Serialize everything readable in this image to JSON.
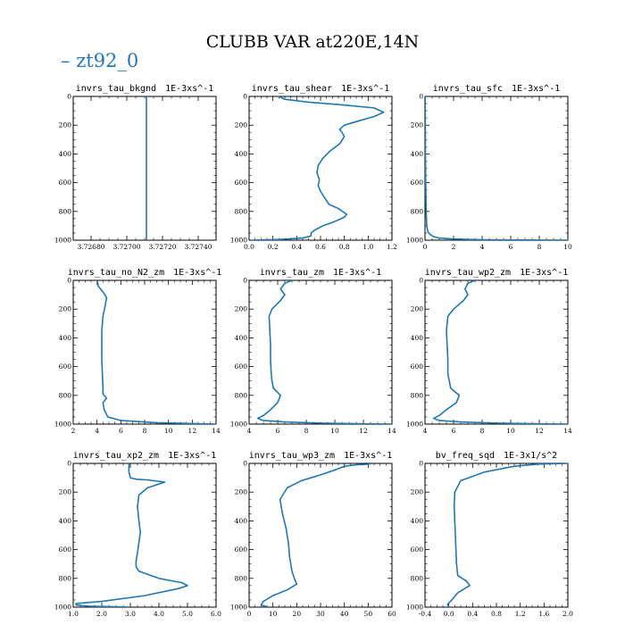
{
  "title": "CLUBB VAR at220E,14N",
  "legend": {
    "label": "zt92_0",
    "marker": "–",
    "color": "#1f77b4"
  },
  "chart_data": [
    {
      "type": "line",
      "title": "invrs_tau_bkgnd",
      "units": "1E-3xs^-1",
      "xlim": [
        3.7267,
        3.7275
      ],
      "xticks": [
        3.7268,
        3.727,
        3.7272,
        3.7274
      ],
      "xtick_labels": [
        "3.72680",
        "3.72700",
        "3.72720",
        "3.72740"
      ],
      "ylim": [
        1000,
        0
      ],
      "yticks": [
        0,
        200,
        400,
        600,
        800,
        1000
      ],
      "series": [
        {
          "x": [
            3.72711,
            3.72711
          ],
          "y": [
            0,
            1000
          ]
        }
      ]
    },
    {
      "type": "line",
      "title": "invrs_tau_shear",
      "units": "1E-3xs^-1",
      "xlim": [
        0.0,
        1.2
      ],
      "xticks": [
        0.0,
        0.2,
        0.4,
        0.6,
        0.8,
        1.0,
        1.2
      ],
      "xtick_labels": [
        "0.0",
        "0.2",
        "0.4",
        "0.6",
        "0.8",
        "1.0",
        "1.2"
      ],
      "ylim": [
        1000,
        0
      ],
      "yticks": [
        0,
        200,
        400,
        600,
        800,
        1000
      ],
      "series": [
        {
          "x": [
            0.25,
            0.3,
            0.5,
            0.8,
            1.05,
            1.13,
            1.05,
            0.9,
            0.8,
            0.76,
            0.78,
            0.8,
            0.76,
            0.68,
            0.62,
            0.58,
            0.57,
            0.59,
            0.58,
            0.6,
            0.63,
            0.67,
            0.75,
            0.82,
            0.8,
            0.72,
            0.62,
            0.55,
            0.52,
            0.52,
            0.45,
            0.25,
            0.02
          ],
          "y": [
            0,
            20,
            40,
            60,
            80,
            110,
            140,
            175,
            200,
            230,
            250,
            280,
            330,
            380,
            430,
            480,
            530,
            580,
            620,
            660,
            700,
            750,
            780,
            820,
            840,
            870,
            900,
            930,
            950,
            970,
            985,
            995,
            1000
          ]
        }
      ]
    },
    {
      "type": "line",
      "title": "invrs_tau_sfc",
      "units": "1E-3xs^-1",
      "xlim": [
        0,
        10
      ],
      "xticks": [
        0,
        2,
        4,
        6,
        8,
        10
      ],
      "xtick_labels": [
        "0",
        "2",
        "4",
        "6",
        "8",
        "10"
      ],
      "ylim": [
        1000,
        0
      ],
      "yticks": [
        0,
        200,
        400,
        600,
        800,
        1000
      ],
      "series": [
        {
          "x": [
            0.01,
            0.02,
            0.03,
            0.05,
            0.08,
            0.12,
            0.2,
            0.35,
            0.6,
            1.0,
            2.0,
            4.0,
            10.0
          ],
          "y": [
            0,
            200,
            400,
            600,
            800,
            900,
            940,
            960,
            975,
            985,
            992,
            997,
            1000
          ]
        }
      ]
    },
    {
      "type": "line",
      "title": "invrs_tau_no_N2_zm",
      "units": "1E-3xs^-1",
      "xlim": [
        2,
        14
      ],
      "xticks": [
        2,
        4,
        6,
        8,
        10,
        12,
        14
      ],
      "xtick_labels": [
        "2",
        "4",
        "6",
        "8",
        "10",
        "12",
        "14"
      ],
      "ylim": [
        1000,
        0
      ],
      "yticks": [
        0,
        200,
        400,
        600,
        800,
        1000
      ],
      "series": [
        {
          "x": [
            4.0,
            4.1,
            4.5,
            4.8,
            4.7,
            4.5,
            4.4,
            4.4,
            4.4,
            4.45,
            4.5,
            4.5,
            4.8,
            4.5,
            4.6,
            4.9,
            6.0,
            9.0,
            14.0
          ],
          "y": [
            0,
            40,
            80,
            120,
            170,
            250,
            350,
            450,
            550,
            650,
            750,
            790,
            820,
            850,
            900,
            950,
            975,
            990,
            1000
          ]
        }
      ]
    },
    {
      "type": "line",
      "title": "invrs_tau_zm",
      "units": "1E-3xs^-1",
      "xlim": [
        4,
        14
      ],
      "xticks": [
        4,
        6,
        8,
        10,
        12,
        14
      ],
      "xtick_labels": [
        "4",
        "6",
        "8",
        "10",
        "12",
        "14"
      ],
      "ylim": [
        1000,
        0
      ],
      "yticks": [
        0,
        200,
        400,
        600,
        800,
        1000
      ],
      "series": [
        {
          "x": [
            7.0,
            6.5,
            6.2,
            6.5,
            6.2,
            5.6,
            5.4,
            5.45,
            5.5,
            5.5,
            5.55,
            5.6,
            5.7,
            6.2,
            6.0,
            5.5,
            5.0,
            4.6,
            5.0,
            6.5,
            9.0,
            12.0,
            14.0
          ],
          "y": [
            0,
            20,
            60,
            100,
            140,
            200,
            250,
            350,
            450,
            550,
            650,
            700,
            750,
            800,
            850,
            900,
            940,
            960,
            975,
            985,
            993,
            998,
            1000
          ]
        }
      ]
    },
    {
      "type": "line",
      "title": "invrs_tau_wp2_zm",
      "units": "1E-3xs^-1",
      "xlim": [
        4,
        14
      ],
      "xticks": [
        4,
        6,
        8,
        10,
        12,
        14
      ],
      "xtick_labels": [
        "4",
        "6",
        "8",
        "10",
        "12",
        "14"
      ],
      "ylim": [
        1000,
        0
      ],
      "yticks": [
        0,
        200,
        400,
        600,
        800,
        1000
      ],
      "series": [
        {
          "x": [
            7.5,
            7.0,
            6.8,
            7.0,
            6.7,
            6.0,
            5.6,
            5.5,
            5.55,
            5.6,
            5.6,
            5.7,
            5.8,
            6.4,
            6.2,
            5.5,
            5.0,
            4.6,
            5.0,
            6.5,
            9.0,
            12.0,
            14.0
          ],
          "y": [
            0,
            20,
            60,
            100,
            140,
            200,
            250,
            350,
            450,
            550,
            650,
            700,
            750,
            800,
            850,
            900,
            940,
            960,
            975,
            985,
            993,
            998,
            1000
          ]
        }
      ]
    },
    {
      "type": "line",
      "title": "invrs_tau_xp2_zm",
      "units": "1E-3xs^-1",
      "xlim": [
        1.0,
        6.0
      ],
      "xticks": [
        1.0,
        2.0,
        3.0,
        4.0,
        5.0,
        6.0
      ],
      "xtick_labels": [
        "1.0",
        "2.0",
        "3.0",
        "4.0",
        "5.0",
        "6.0"
      ],
      "ylim": [
        1000,
        0
      ],
      "yticks": [
        0,
        200,
        400,
        600,
        800,
        1000
      ],
      "series": [
        {
          "x": [
            2.95,
            2.95,
            3.0,
            3.2,
            3.6,
            4.2,
            3.6,
            3.3,
            3.25,
            3.3,
            3.35,
            3.3,
            3.25,
            3.2,
            3.2,
            3.3,
            4.0,
            4.8,
            5.0,
            4.7,
            3.5,
            2.0,
            1.1,
            1.1,
            1.5,
            3.0
          ],
          "y": [
            0,
            60,
            100,
            110,
            115,
            130,
            170,
            220,
            300,
            400,
            480,
            550,
            620,
            680,
            720,
            750,
            800,
            830,
            850,
            870,
            920,
            960,
            975,
            985,
            993,
            1000
          ]
        }
      ]
    },
    {
      "type": "line",
      "title": "invrs_tau_wp3_zm",
      "units": "1E-3xs^-1",
      "xlim": [
        0,
        60
      ],
      "xticks": [
        0,
        10,
        20,
        30,
        40,
        50,
        60
      ],
      "xtick_labels": [
        "0",
        "10",
        "20",
        "30",
        "40",
        "50",
        "60"
      ],
      "ylim": [
        1000,
        0
      ],
      "yticks": [
        0,
        200,
        400,
        600,
        800,
        1000
      ],
      "series": [
        {
          "x": [
            52,
            50,
            45,
            40,
            37,
            30,
            22,
            16,
            13,
            14,
            15.5,
            16.5,
            17,
            18,
            19,
            20,
            16,
            10,
            6,
            5,
            8
          ],
          "y": [
            0,
            5,
            10,
            20,
            40,
            80,
            120,
            170,
            250,
            350,
            450,
            550,
            650,
            750,
            800,
            840,
            880,
            920,
            960,
            985,
            1000
          ]
        }
      ]
    },
    {
      "type": "line",
      "title": "bv_freq_sqd",
      "units": "1E-3x1/s^2",
      "xlim": [
        -0.4,
        2.0
      ],
      "xticks": [
        -0.4,
        0.0,
        0.4,
        0.8,
        1.2,
        1.6,
        2.0
      ],
      "xtick_labels": [
        "-0.4",
        "0.0",
        "0.4",
        "0.8",
        "1.2",
        "1.6",
        "2.0"
      ],
      "ylim": [
        1000,
        0
      ],
      "yticks": [
        0,
        200,
        400,
        600,
        800,
        1000
      ],
      "series": [
        {
          "x": [
            2.0,
            1.5,
            1.1,
            0.6,
            0.2,
            0.1,
            0.09,
            0.1,
            0.11,
            0.12,
            0.13,
            0.15,
            0.3,
            0.35,
            0.15,
            0.05,
            -0.02,
            0.0
          ],
          "y": [
            0,
            5,
            20,
            60,
            120,
            200,
            300,
            400,
            500,
            600,
            700,
            780,
            820,
            850,
            900,
            950,
            980,
            1000
          ]
        }
      ]
    }
  ]
}
